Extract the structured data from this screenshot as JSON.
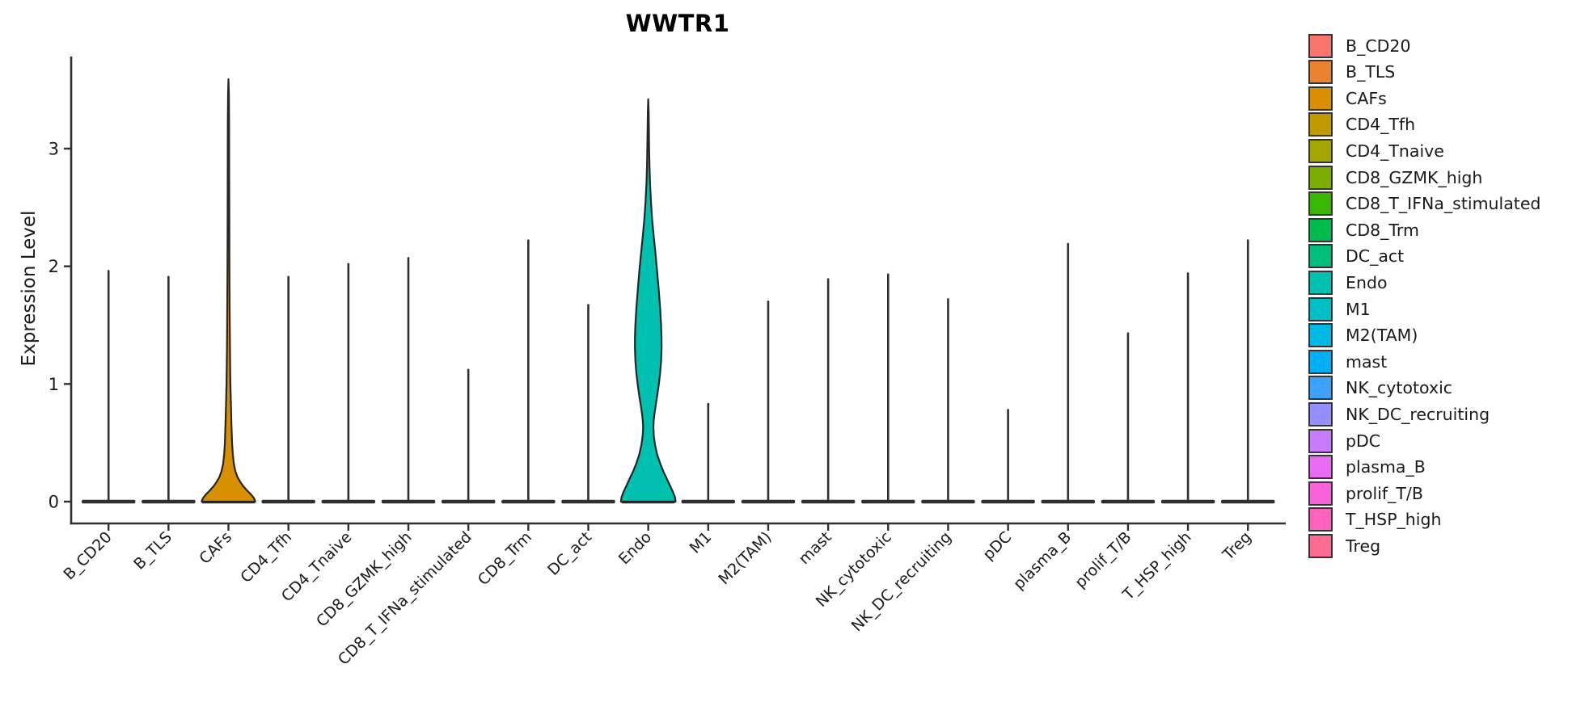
{
  "chart_data": {
    "type": "violin",
    "title": "WWTR1",
    "ylabel": "Expression Level",
    "yticks": [
      0,
      1,
      2,
      3
    ],
    "ylim": [
      0,
      3.78
    ],
    "grid": false,
    "legend_position": "right",
    "categories": [
      "B_CD20",
      "B_TLS",
      "CAFs",
      "CD4_Tfh",
      "CD4_Tnaive",
      "CD8_GZMK_high",
      "CD8_T_IFNa_stimulated",
      "CD8_Trm",
      "DC_act",
      "Endo",
      "M1",
      "M2(TAM)",
      "mast",
      "NK_cytotoxic",
      "NK_DC_recruiting",
      "pDC",
      "plasma_B",
      "prolif_T/B",
      "T_HSP_high",
      "Treg"
    ],
    "colors": [
      "#F8766D",
      "#EA8331",
      "#D89000",
      "#C09B00",
      "#A3A500",
      "#7CAE00",
      "#39B600",
      "#00BB4E",
      "#00BF7D",
      "#00C0AF",
      "#00BFC4",
      "#00B8E5",
      "#00B0F6",
      "#3DA1FF",
      "#9590FF",
      "#C77CFF",
      "#E76BF3",
      "#FA62DB",
      "#FF62BC",
      "#FF6C92"
    ],
    "max_expression": [
      1.96,
      1.91,
      3.59,
      1.91,
      2.02,
      2.07,
      1.12,
      2.22,
      1.67,
      3.42,
      0.83,
      1.7,
      1.89,
      1.93,
      1.72,
      0.78,
      2.19,
      1.43,
      1.94,
      2.22
    ],
    "violin_profiles": {
      "CAFs": [
        [
          3.59,
          0.0
        ],
        [
          3.45,
          0.015
        ],
        [
          3.2,
          0.022
        ],
        [
          2.8,
          0.025
        ],
        [
          2.4,
          0.028
        ],
        [
          2.0,
          0.032
        ],
        [
          1.6,
          0.04
        ],
        [
          1.3,
          0.05
        ],
        [
          1.0,
          0.065
        ],
        [
          0.8,
          0.085
        ],
        [
          0.65,
          0.1
        ],
        [
          0.5,
          0.12
        ],
        [
          0.4,
          0.145
        ],
        [
          0.32,
          0.18
        ],
        [
          0.26,
          0.23
        ],
        [
          0.21,
          0.3
        ],
        [
          0.17,
          0.39
        ],
        [
          0.13,
          0.5
        ],
        [
          0.09,
          0.64
        ],
        [
          0.06,
          0.76
        ],
        [
          0.03,
          0.85
        ],
        [
          0.01,
          0.885
        ],
        [
          0.0,
          0.895
        ]
      ],
      "Endo": [
        [
          3.42,
          0.0
        ],
        [
          3.3,
          0.015
        ],
        [
          3.15,
          0.022
        ],
        [
          3.0,
          0.03
        ],
        [
          2.85,
          0.042
        ],
        [
          2.7,
          0.06
        ],
        [
          2.55,
          0.09
        ],
        [
          2.4,
          0.13
        ],
        [
          2.25,
          0.185
        ],
        [
          2.1,
          0.245
        ],
        [
          1.95,
          0.3
        ],
        [
          1.8,
          0.35
        ],
        [
          1.65,
          0.395
        ],
        [
          1.5,
          0.43
        ],
        [
          1.4,
          0.443
        ],
        [
          1.3,
          0.445
        ],
        [
          1.2,
          0.432
        ],
        [
          1.1,
          0.4
        ],
        [
          1.0,
          0.355
        ],
        [
          0.9,
          0.3
        ],
        [
          0.82,
          0.25
        ],
        [
          0.74,
          0.205
        ],
        [
          0.68,
          0.18
        ],
        [
          0.63,
          0.172
        ],
        [
          0.56,
          0.185
        ],
        [
          0.48,
          0.23
        ],
        [
          0.4,
          0.3
        ],
        [
          0.33,
          0.39
        ],
        [
          0.26,
          0.5
        ],
        [
          0.19,
          0.63
        ],
        [
          0.13,
          0.74
        ],
        [
          0.08,
          0.83
        ],
        [
          0.04,
          0.89
        ],
        [
          0.0,
          0.915
        ]
      ]
    },
    "line_color": "#2f2f2f"
  }
}
